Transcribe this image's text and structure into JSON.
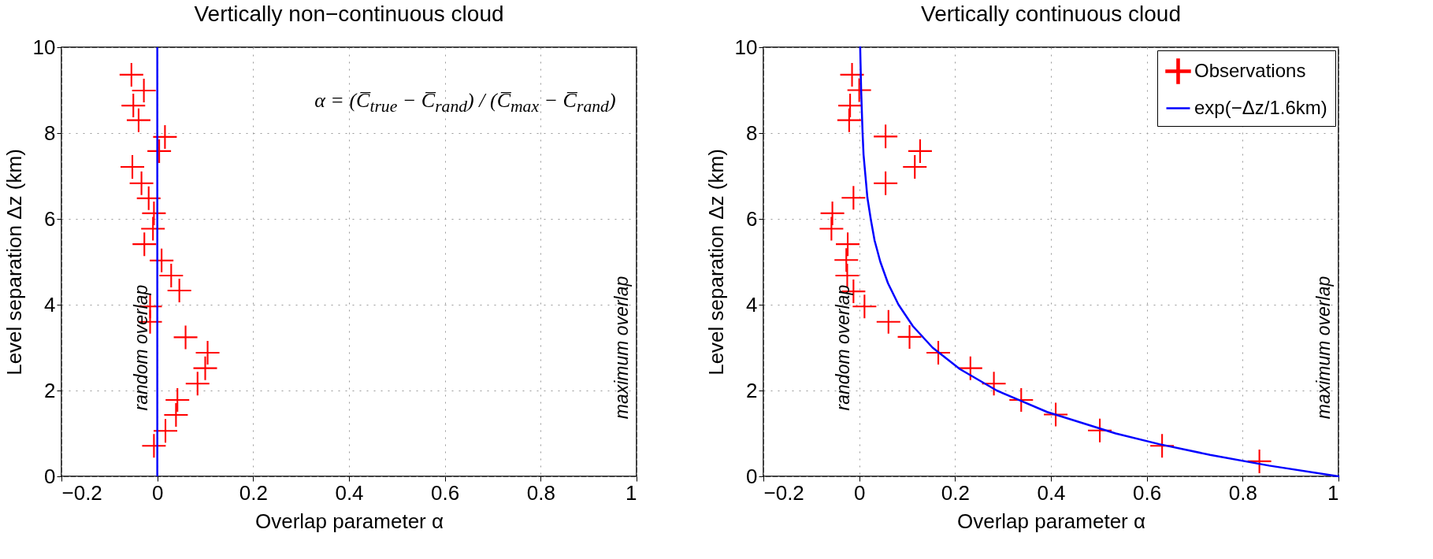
{
  "chart_data": [
    {
      "type": "scatter",
      "title": "Vertically non−continuous cloud",
      "xlabel": "Overlap parameter α",
      "ylabel": "Level separation Δz (km)",
      "xlim": [
        -0.2,
        1
      ],
      "xticks": [
        {
          "value": -0.2,
          "label": "−0.2"
        },
        0,
        0.2,
        0.4,
        0.6,
        0.8,
        1
      ],
      "ylim": [
        0,
        10
      ],
      "yticks": [
        0,
        2,
        4,
        6,
        8,
        10
      ],
      "grid": true,
      "series": [
        {
          "type": "scatter",
          "marker": "cross",
          "color": "#ff0000",
          "x": [
            -0.054,
            -0.028,
            -0.05,
            -0.039,
            0.016,
            0.004,
            -0.052,
            -0.033,
            -0.018,
            -0.007,
            -0.009,
            -0.027,
            0.009,
            0.029,
            0.046,
            -0.015,
            -0.015,
            0.059,
            0.105,
            0.1,
            0.084,
            0.042,
            0.039,
            0.017,
            -0.007
          ],
          "values": [
            9.36,
            8.99,
            8.64,
            8.3,
            7.91,
            7.58,
            7.21,
            6.83,
            6.48,
            6.13,
            5.77,
            5.41,
            5.03,
            4.68,
            4.33,
            3.96,
            3.6,
            3.24,
            2.88,
            2.52,
            2.16,
            1.78,
            1.43,
            1.06,
            0.71
          ]
        }
      ],
      "ref_lines": [
        {
          "axis": "x",
          "value": 0,
          "color": "#0000ff"
        }
      ],
      "annotations": [
        "α = (C̅$_{true}$ − C̅$_{rand}$) / (C̅$_{max}$ − C̅$_{rand}$)",
        "random overlap",
        "maximum overlap"
      ]
    },
    {
      "type": "scatter",
      "title": "Vertically continuous cloud",
      "xlabel": "Overlap parameter α",
      "ylabel": "Level separation Δz (km)",
      "xlim": [
        -0.2,
        1
      ],
      "xticks": [
        {
          "value": -0.2,
          "label": "−0.2"
        },
        0,
        0.2,
        0.4,
        0.6,
        0.8,
        1
      ],
      "ylim": [
        0,
        10
      ],
      "yticks": [
        0,
        2,
        4,
        6,
        8,
        10
      ],
      "grid": true,
      "legend": "top right",
      "series": [
        {
          "name": "Observations",
          "type": "scatter",
          "marker": "cross",
          "color": "#ff0000",
          "x": [
            -0.015,
            0.0,
            -0.019,
            -0.021,
            0.055,
            0.127,
            0.116,
            0.055,
            -0.012,
            -0.056,
            -0.058,
            -0.024,
            -0.027,
            -0.025,
            -0.012,
            0.011,
            0.061,
            0.105,
            0.165,
            0.232,
            0.281,
            0.338,
            0.41,
            0.502,
            0.632,
            0.835
          ],
          "values": [
            9.36,
            9.0,
            8.64,
            8.3,
            7.92,
            7.58,
            7.21,
            6.83,
            6.49,
            6.13,
            5.77,
            5.41,
            5.04,
            4.68,
            4.31,
            3.96,
            3.6,
            3.25,
            2.88,
            2.52,
            2.16,
            1.78,
            1.44,
            1.07,
            0.71,
            0.35
          ]
        },
        {
          "name": "exp(−Δz/1.6km)",
          "type": "line",
          "color": "#0000ff",
          "x": [
            1,
            0.855,
            0.732,
            0.626,
            0.535,
            0.392,
            0.287,
            0.21,
            0.153,
            0.112,
            0.082,
            0.06,
            0.044,
            0.032,
            0.024,
            0.017,
            0.013,
            0.009,
            0.007,
            0.004,
            0.002
          ],
          "values": [
            0,
            0.25,
            0.5,
            0.75,
            1,
            1.5,
            2,
            2.5,
            3,
            3.5,
            4,
            4.5,
            5,
            5.5,
            6,
            6.5,
            7,
            7.5,
            8,
            9,
            10
          ]
        }
      ],
      "annotations": [
        "random overlap",
        "maximum overlap"
      ]
    }
  ]
}
